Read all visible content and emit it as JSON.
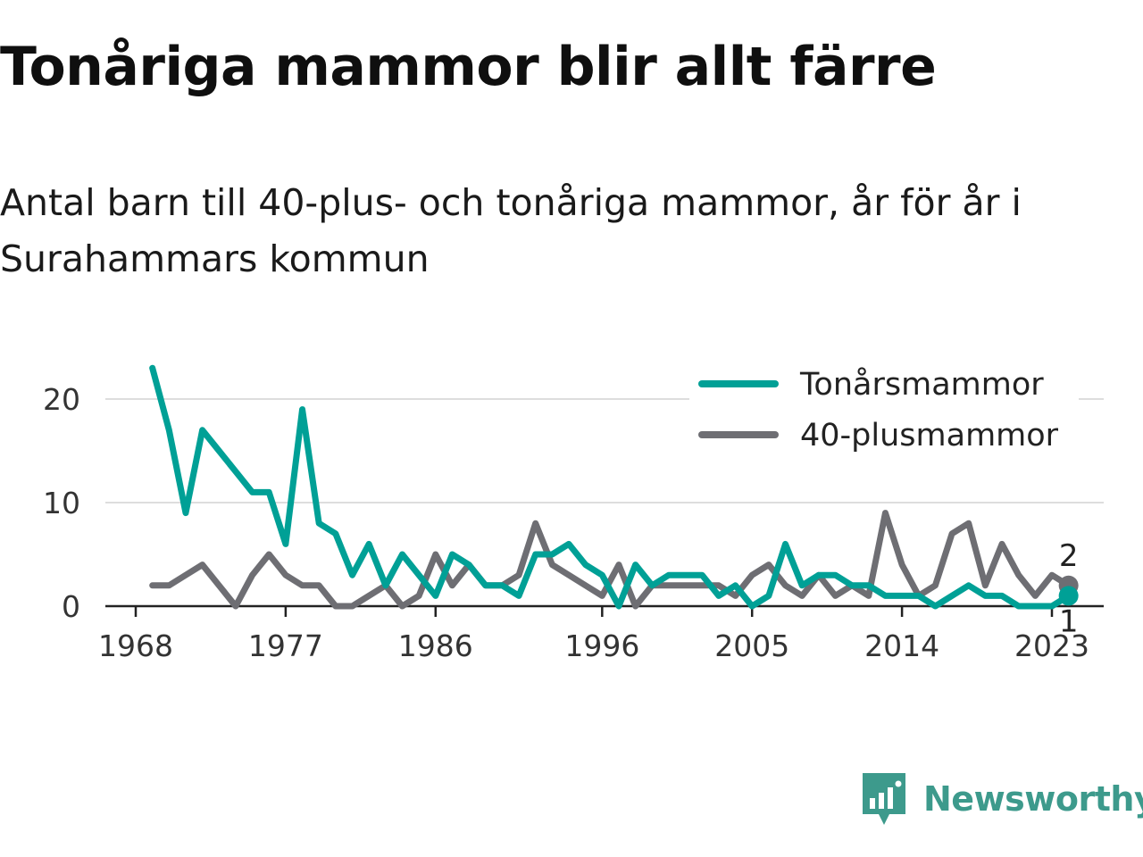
{
  "title": "Tonåriga mammor blir allt färre",
  "subtitle": "Antal barn till 40-plus- och tonåriga mammor, år för år i Surahammars kommun",
  "brand": {
    "name": "Newsworthy",
    "icon": "newsworthy-logo-icon",
    "color": "#3d9a8c"
  },
  "chart_data": {
    "type": "line",
    "title": "Tonåriga mammor blir allt färre",
    "subtitle": "Antal barn till 40-plus- och tonåriga mammor, år för år i Surahammars kommun",
    "xlabel": "",
    "ylabel": "",
    "xlim": [
      1968,
      2023
    ],
    "ylim": [
      0,
      24
    ],
    "grid": "horizontal",
    "legend_position": "top-right",
    "x_ticks": [
      1968,
      1977,
      1986,
      1996,
      2005,
      2014,
      2023
    ],
    "y_ticks": [
      0,
      10,
      20
    ],
    "x": [
      1969,
      1970,
      1971,
      1972,
      1973,
      1974,
      1975,
      1976,
      1977,
      1978,
      1979,
      1980,
      1981,
      1982,
      1983,
      1984,
      1985,
      1986,
      1987,
      1988,
      1989,
      1990,
      1991,
      1992,
      1993,
      1994,
      1995,
      1996,
      1997,
      1998,
      1999,
      2000,
      2001,
      2002,
      2003,
      2004,
      2005,
      2006,
      2007,
      2008,
      2009,
      2010,
      2011,
      2012,
      2013,
      2014,
      2015,
      2016,
      2017,
      2018,
      2019,
      2020,
      2021,
      2022,
      2023,
      2024
    ],
    "series": [
      {
        "name": "Tonårsmammor",
        "color": "#00a096",
        "values": [
          23,
          17,
          9,
          17,
          15,
          13,
          11,
          11,
          6,
          19,
          8,
          7,
          3,
          6,
          2,
          5,
          3,
          1,
          5,
          4,
          2,
          2,
          1,
          5,
          5,
          6,
          4,
          3,
          0,
          4,
          2,
          3,
          3,
          3,
          1,
          2,
          0,
          1,
          6,
          2,
          3,
          3,
          2,
          2,
          1,
          1,
          1,
          0,
          1,
          2,
          1,
          1,
          0,
          0,
          0,
          1
        ],
        "end_label": "1"
      },
      {
        "name": "40-plusmammor",
        "color": "#6e6e73",
        "values": [
          2,
          2,
          3,
          4,
          2,
          0,
          3,
          5,
          3,
          2,
          2,
          0,
          0,
          1,
          2,
          0,
          1,
          5,
          2,
          4,
          2,
          2,
          3,
          8,
          4,
          3,
          2,
          1,
          4,
          0,
          2,
          2,
          2,
          2,
          2,
          1,
          3,
          4,
          2,
          1,
          3,
          1,
          2,
          1,
          9,
          4,
          1,
          2,
          7,
          8,
          2,
          6,
          3,
          1,
          3,
          2
        ],
        "end_label": "2"
      }
    ]
  }
}
